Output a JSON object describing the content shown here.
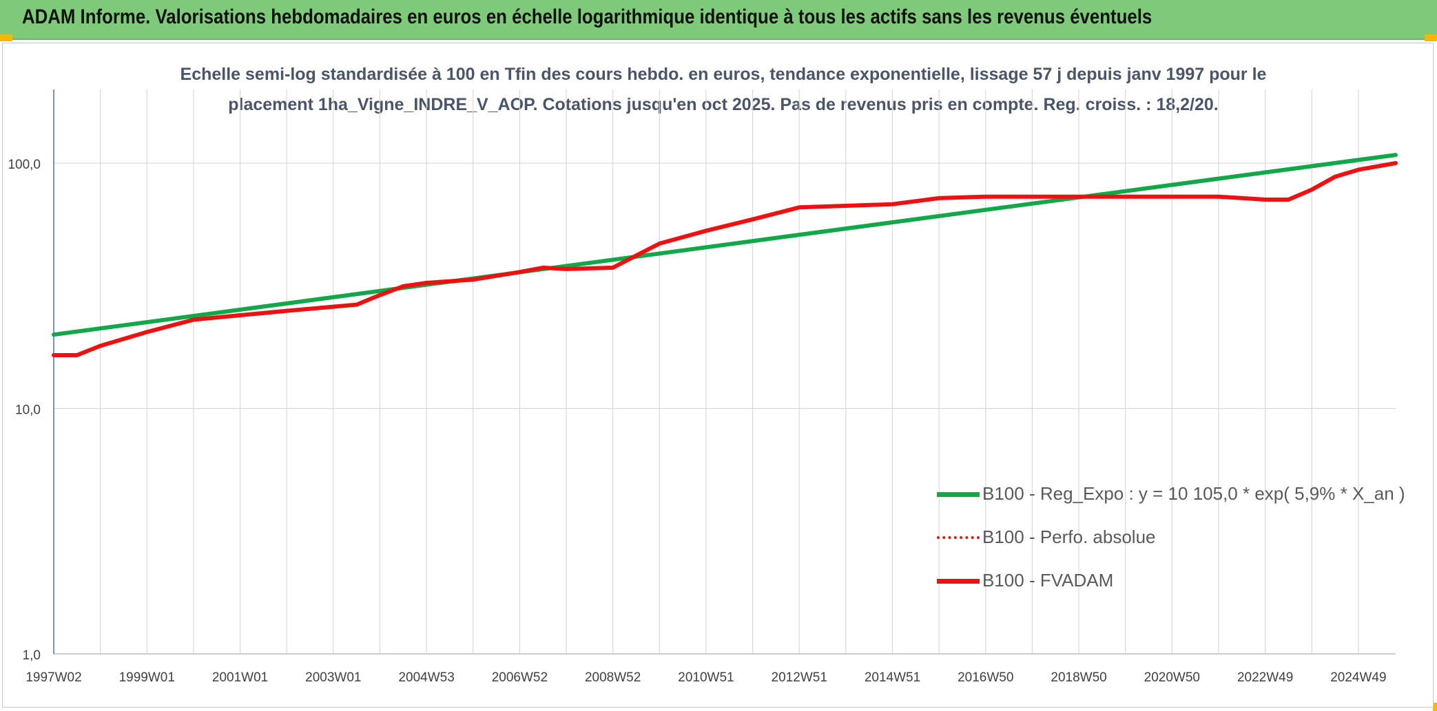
{
  "header": {
    "title": "ADAM Informe. Valorisations hebdomadaires en euros en échelle logarithmique identique à tous les actifs sans les revenus éventuels"
  },
  "colors": {
    "header_bg": "#7fc97a",
    "corner": "#f5b800",
    "green_line": "#12a84a",
    "red_line": "#ee1111",
    "axis_blue": "#4472c4",
    "grid": "#d9d9d9",
    "title_text": "#4a5568"
  },
  "chart_data": {
    "type": "line",
    "scale": "log",
    "title_lines": [
      "Echelle semi-log standardisée à 100 en Tfin des cours hebdo. en euros, tendance exponentielle, lissage 57 j depuis janv 1997 pour le",
      "placement 1ha_Vigne_INDRE_V_AOP. Cotations jusqu'en oct 2025. Pas de revenus pris en compte. Reg. croiss. : 18,2/20."
    ],
    "ylim": [
      1,
      200
    ],
    "y_ticks": [
      {
        "value": 1,
        "label": "1,0"
      },
      {
        "value": 10,
        "label": "10,0"
      },
      {
        "value": 100,
        "label": "100,0"
      }
    ],
    "x_range": [
      1997.0,
      2025.8
    ],
    "x_ticks": [
      {
        "year": 1997.0,
        "label": "1997W02"
      },
      {
        "year": 1999.0,
        "label": "1999W01"
      },
      {
        "year": 2001.0,
        "label": "2001W01"
      },
      {
        "year": 2003.0,
        "label": "2003W01"
      },
      {
        "year": 2005.0,
        "label": "2004W53"
      },
      {
        "year": 2007.0,
        "label": "2006W52"
      },
      {
        "year": 2009.0,
        "label": "2008W52"
      },
      {
        "year": 2011.0,
        "label": "2010W51"
      },
      {
        "year": 2013.0,
        "label": "2012W51"
      },
      {
        "year": 2015.0,
        "label": "2014W51"
      },
      {
        "year": 2017.0,
        "label": "2016W50"
      },
      {
        "year": 2019.0,
        "label": "2018W50"
      },
      {
        "year": 2021.0,
        "label": "2020W50"
      },
      {
        "year": 2023.0,
        "label": "2022W49"
      },
      {
        "year": 2025.0,
        "label": "2024W49"
      }
    ],
    "x_minor_grid": [
      1998,
      2000,
      2002,
      2004,
      2006,
      2008,
      2010,
      2012,
      2014,
      2016,
      2018,
      2020,
      2022,
      2024
    ],
    "series": [
      {
        "name": "B100 - Reg_Expo : y = 10 105,0 * exp( 5,9% *  X_an )",
        "style": "solid-thick",
        "color": "#12a84a",
        "x": [
          1997.0,
          2025.8
        ],
        "values": [
          20.0,
          108.0
        ]
      },
      {
        "name": "B100 - Perfo. absolue",
        "style": "dotted",
        "color": "#ee1111",
        "x": [],
        "values": []
      },
      {
        "name": "B100 - FVADAM",
        "style": "solid-thick",
        "color": "#ee1111",
        "x": [
          1997.0,
          1997.5,
          1998.0,
          1999.0,
          2000.0,
          2001.0,
          2002.0,
          2003.0,
          2003.5,
          2004.0,
          2004.5,
          2005.0,
          2006.0,
          2007.0,
          2007.5,
          2008.0,
          2009.0,
          2009.5,
          2010.0,
          2011.0,
          2012.0,
          2013.0,
          2014.0,
          2015.0,
          2016.0,
          2017.0,
          2018.0,
          2019.0,
          2020.0,
          2021.0,
          2022.0,
          2023.0,
          2023.5,
          2024.0,
          2024.5,
          2025.0,
          2025.8
        ],
        "values": [
          16.5,
          16.5,
          18.0,
          20.5,
          23.0,
          24.0,
          25.0,
          26.0,
          26.5,
          29.0,
          31.5,
          32.5,
          33.5,
          36.0,
          37.5,
          37.0,
          37.5,
          42.0,
          47.0,
          53.0,
          59.0,
          66.0,
          67.0,
          68.0,
          72.0,
          73.0,
          73.0,
          73.0,
          73.0,
          73.0,
          73.0,
          71.0,
          71.0,
          78.0,
          88.0,
          94.0,
          100.0
        ]
      }
    ]
  }
}
